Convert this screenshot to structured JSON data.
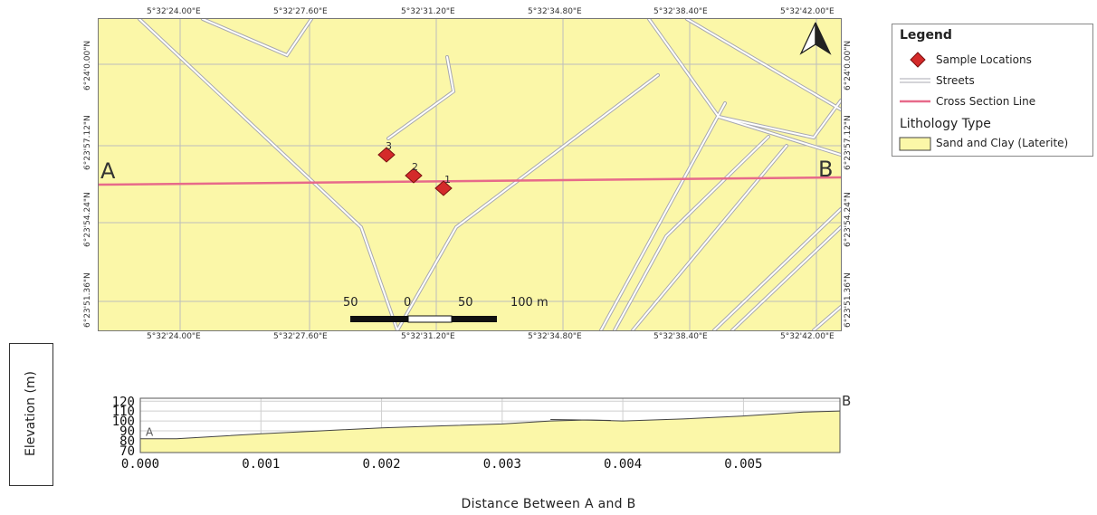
{
  "map": {
    "top_x_labels": [
      "5°32'24.00\"E",
      "5°32'27.60\"E",
      "5°32'31.20\"E",
      "5°32'34.80\"E",
      "5°32'38.40\"E",
      "5°32'42.00\"E"
    ],
    "bottom_x_labels": [
      "5°32'24.00\"E",
      "5°32'27.60\"E",
      "5°32'31.20\"E",
      "5°32'34.80\"E",
      "5°32'38.40\"E",
      "5°32'42.00\"E"
    ],
    "left_y_labels": [
      "6°24'0.00\"N",
      "6°23'57.12\"N",
      "6°23'54.24\"N",
      "6°23'51.36\"N"
    ],
    "right_y_labels": [
      "6°24'0.00\"N",
      "6°23'57.12\"N",
      "6°23'54.24\"N",
      "6°23'51.36\"N"
    ],
    "point_a": "A",
    "point_b": "B",
    "samples": [
      "1",
      "2",
      "3"
    ],
    "scale_labels": [
      "50",
      "0",
      "50",
      "100 m"
    ],
    "colors": {
      "background": "#fbf7a8",
      "street": "#c8c8d0",
      "cross_section": "#e76a8a",
      "sample": "#d42a2a"
    },
    "north_arrow": "north-arrow-icon"
  },
  "legend": {
    "title": "Legend",
    "items": [
      {
        "label": "Sample Locations",
        "icon": "diamond-icon"
      },
      {
        "label": "Streets",
        "icon": "street-line-icon"
      },
      {
        "label": "Cross Section Line",
        "icon": "pink-line-icon"
      }
    ],
    "lithology_title": "Lithology Type",
    "lithology_item": "Sand and Clay (Laterite)"
  },
  "chart_data": {
    "type": "area",
    "title": "",
    "xlabel": "Distance Between A and B",
    "ylabel": "Elevation (m)",
    "xlim": [
      0,
      0.0058
    ],
    "ylim": [
      68,
      123
    ],
    "x_ticks": [
      "0.000",
      "0.001",
      "0.002",
      "0.003",
      "0.004",
      "0.005"
    ],
    "y_ticks": [
      "120",
      "110",
      "100",
      "90",
      "80",
      "70"
    ],
    "start_label": "A",
    "end_label": "B",
    "grid": true,
    "series": [
      {
        "x": [
          0.0,
          0.0003,
          0.001,
          0.0015,
          0.002,
          0.0025,
          0.003,
          0.0034,
          0.0037,
          0.004,
          0.0045,
          0.005,
          0.0055,
          0.0058
        ],
        "values": [
          82,
          82,
          87,
          90,
          93,
          95,
          97,
          100,
          101,
          100,
          102,
          105,
          109,
          110
        ]
      }
    ]
  }
}
